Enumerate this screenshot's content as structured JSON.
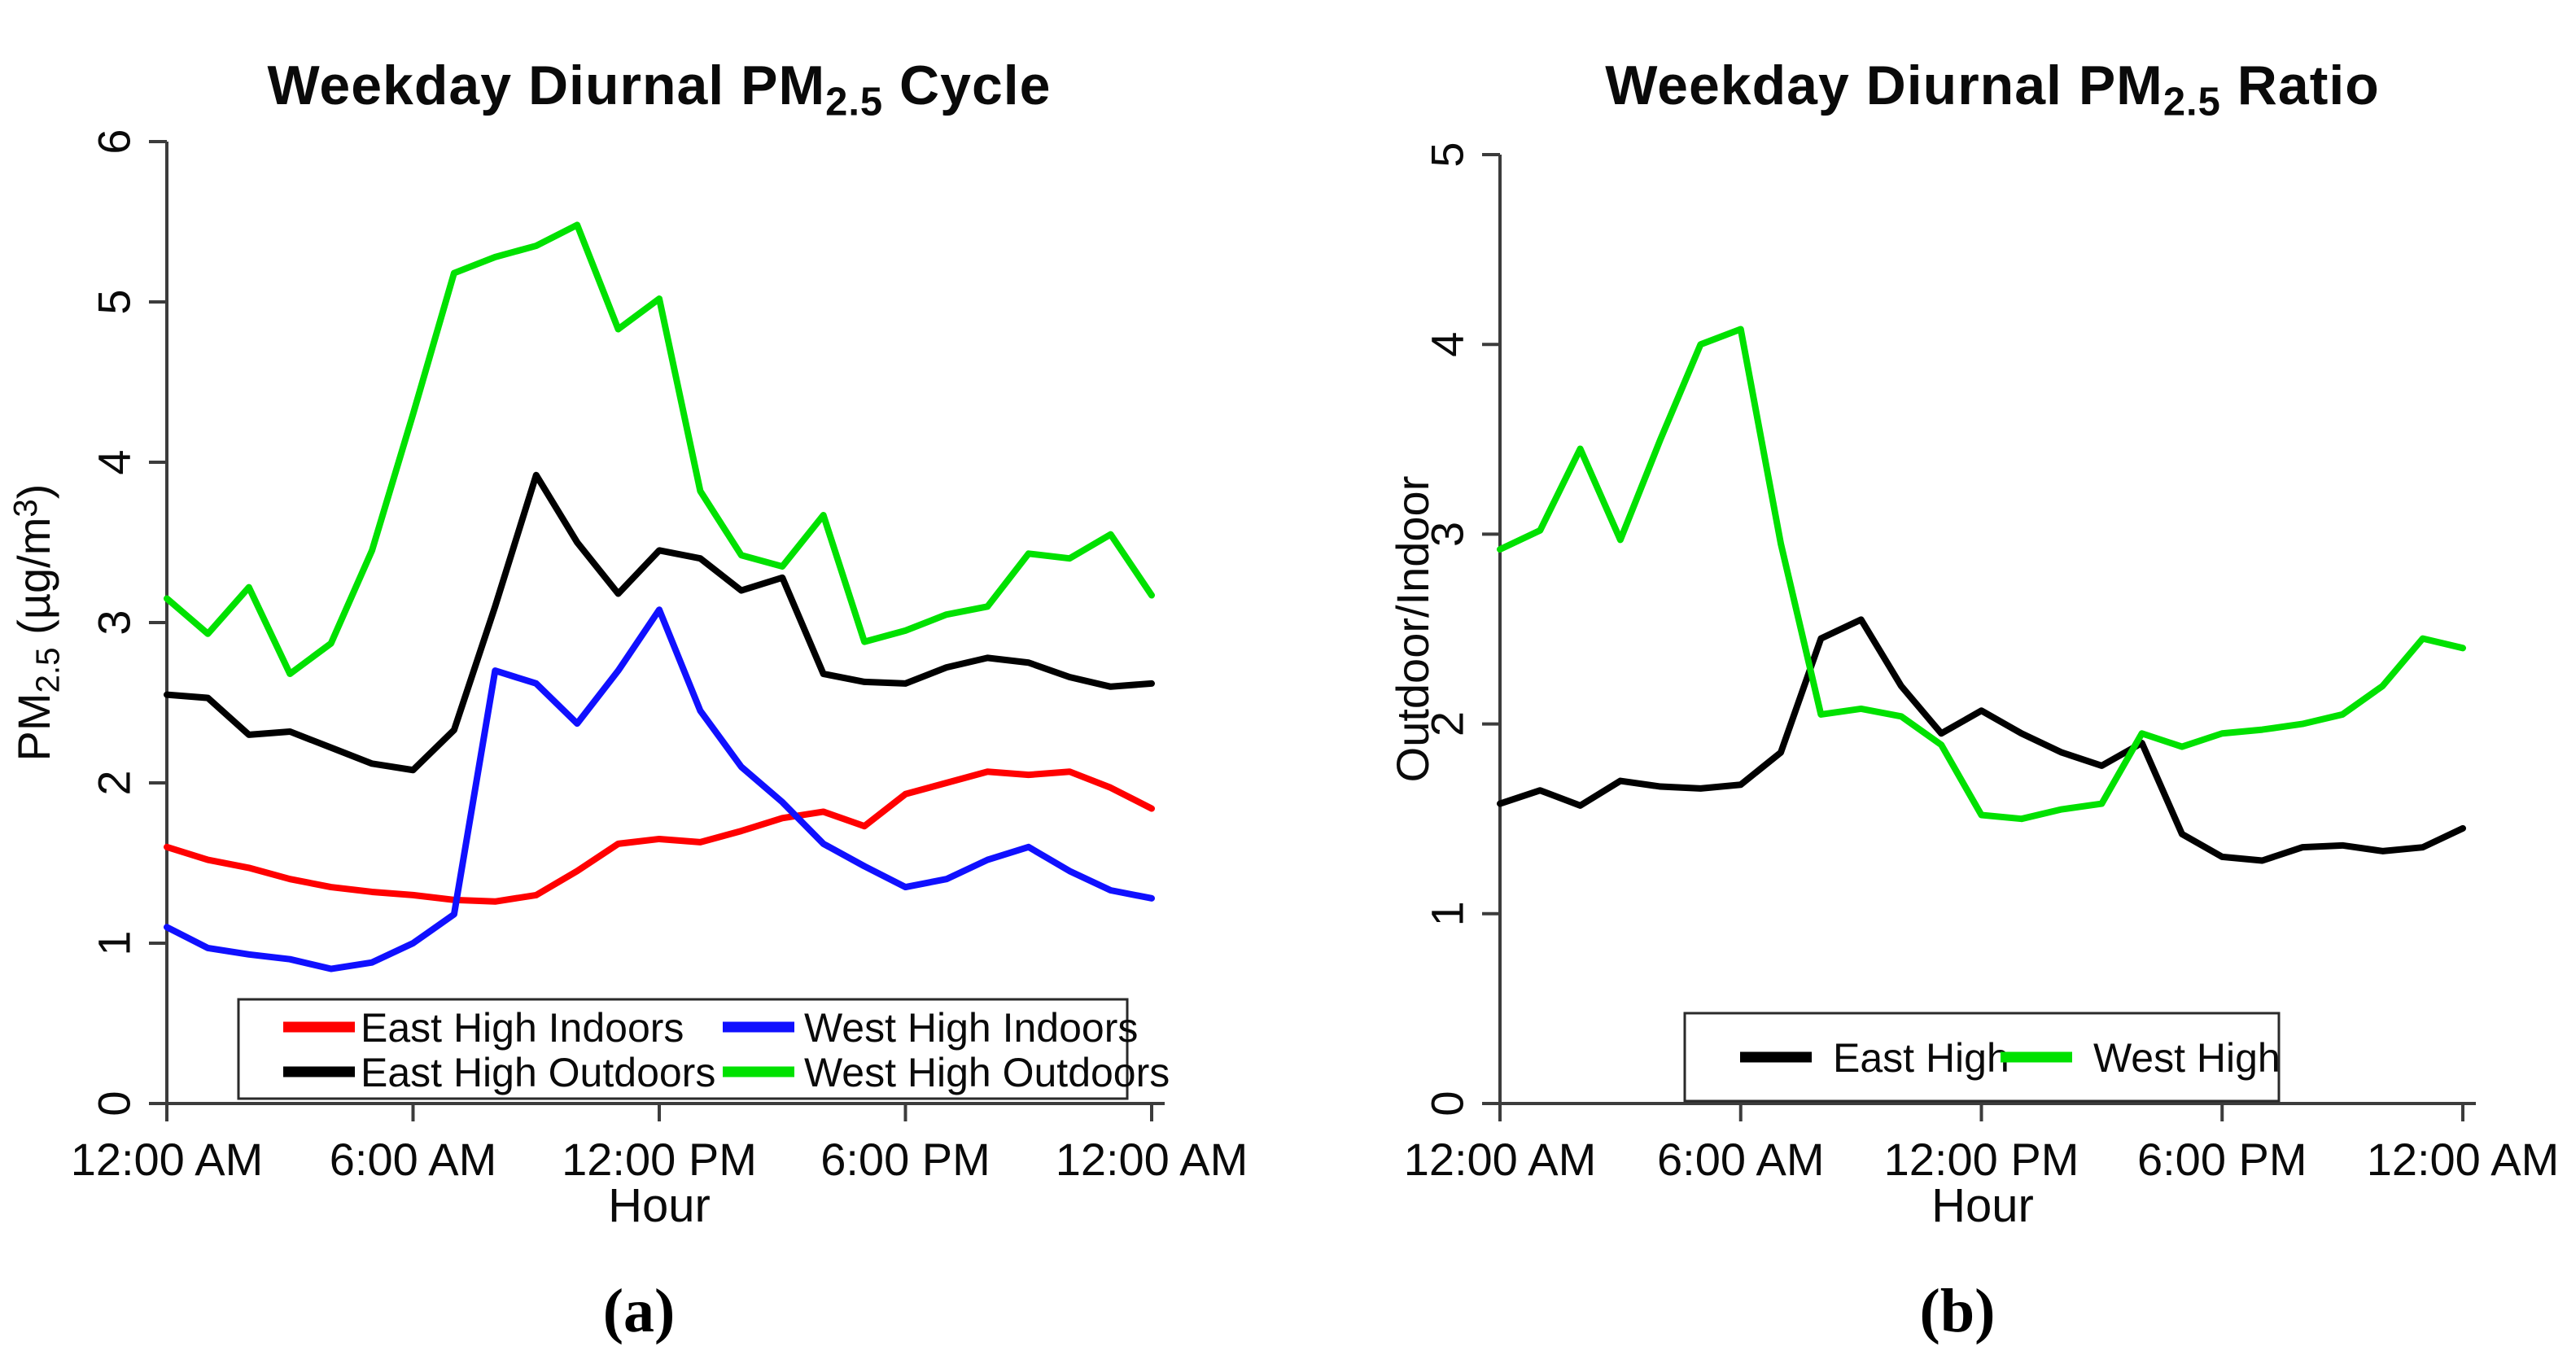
{
  "figure": {
    "background": "#FFFFFF",
    "captions": {
      "a": "(a)",
      "b": "(b)"
    }
  },
  "chart_data": [
    {
      "id": "weekday-diurnal-pm25-cycle",
      "type": "line",
      "title": {
        "pre": "Weekday Diurnal PM",
        "sub": "2.5",
        "post": " Cycle"
      },
      "ylabel": {
        "pre": "PM",
        "sub": "2.5",
        "mid": " (µg/m",
        "sup": "3",
        "post": ")"
      },
      "xlabel": "Hour",
      "caption": "(a)",
      "ylim": [
        0,
        6
      ],
      "y_ticks": [
        0,
        1,
        2,
        3,
        4,
        5,
        6
      ],
      "x_range_hours": [
        0,
        24
      ],
      "x_tick_hours": [
        0,
        6,
        12,
        18,
        24
      ],
      "x_tick_labels": [
        "12:00 AM",
        "6:00 AM",
        "12:00 PM",
        "6:00 PM",
        "12:00 AM"
      ],
      "x_hours": [
        0,
        1,
        2,
        3,
        4,
        5,
        6,
        7,
        8,
        9,
        10,
        11,
        12,
        13,
        14,
        15,
        16,
        17,
        18,
        19,
        20,
        21,
        22,
        23,
        24
      ],
      "grid": false,
      "legend_position": "bottom-inside",
      "legend_columns": 2,
      "series": [
        {
          "name": "East High Indoors",
          "color": "#FF0000",
          "values": [
            1.6,
            1.52,
            1.47,
            1.4,
            1.35,
            1.32,
            1.3,
            1.27,
            1.26,
            1.3,
            1.45,
            1.62,
            1.65,
            1.63,
            1.7,
            1.78,
            1.82,
            1.73,
            1.93,
            2.0,
            2.07,
            2.05,
            2.07,
            1.97,
            1.84
          ]
        },
        {
          "name": "East High Outdoors",
          "color": "#000000",
          "values": [
            2.55,
            2.53,
            2.3,
            2.32,
            2.22,
            2.12,
            2.08,
            2.33,
            3.1,
            3.92,
            3.5,
            3.18,
            3.45,
            3.4,
            3.2,
            3.28,
            2.68,
            2.63,
            2.62,
            2.72,
            2.78,
            2.75,
            2.66,
            2.6,
            2.62
          ]
        },
        {
          "name": "West High Indoors",
          "color": "#1010FF",
          "values": [
            1.1,
            0.97,
            0.93,
            0.9,
            0.84,
            0.88,
            1.0,
            1.18,
            2.7,
            2.62,
            2.37,
            2.7,
            3.08,
            2.45,
            2.1,
            1.88,
            1.62,
            1.48,
            1.35,
            1.4,
            1.52,
            1.6,
            1.45,
            1.33,
            1.28
          ]
        },
        {
          "name": "West High Outdoors",
          "color": "#00E100",
          "values": [
            3.15,
            2.93,
            3.22,
            2.68,
            2.87,
            3.45,
            4.3,
            5.18,
            5.28,
            5.35,
            5.48,
            4.83,
            5.02,
            3.82,
            3.42,
            3.35,
            3.67,
            2.88,
            2.95,
            3.05,
            3.1,
            3.43,
            3.4,
            3.55,
            3.17
          ]
        }
      ]
    },
    {
      "id": "weekday-diurnal-pm25-ratio",
      "type": "line",
      "title": {
        "pre": "Weekday Diurnal PM",
        "sub": "2.5",
        "post": " Ratio"
      },
      "ylabel": {
        "pre": "Outdoor/Indoor",
        "sub": "",
        "mid": "",
        "sup": "",
        "post": ""
      },
      "xlabel": "Hour",
      "caption": "(b)",
      "ylim": [
        0,
        5
      ],
      "y_ticks": [
        0,
        1,
        2,
        3,
        4,
        5
      ],
      "x_range_hours": [
        0,
        24
      ],
      "x_tick_hours": [
        0,
        6,
        12,
        18,
        24
      ],
      "x_tick_labels": [
        "12:00 AM",
        "6:00 AM",
        "12:00 PM",
        "6:00 PM",
        "12:00 AM"
      ],
      "x_hours": [
        0,
        1,
        2,
        3,
        4,
        5,
        6,
        7,
        8,
        9,
        10,
        11,
        12,
        13,
        14,
        15,
        16,
        17,
        18,
        19,
        20,
        21,
        22,
        23,
        24
      ],
      "grid": false,
      "legend_position": "bottom-inside",
      "legend_columns": 2,
      "series": [
        {
          "name": "East High",
          "color": "#000000",
          "values": [
            1.58,
            1.65,
            1.57,
            1.7,
            1.67,
            1.66,
            1.68,
            1.85,
            2.45,
            2.55,
            2.2,
            1.95,
            2.07,
            1.95,
            1.85,
            1.78,
            1.9,
            1.42,
            1.3,
            1.28,
            1.35,
            1.36,
            1.33,
            1.35,
            1.45
          ]
        },
        {
          "name": "West High",
          "color": "#00E100",
          "values": [
            2.92,
            3.02,
            3.45,
            2.97,
            3.5,
            4.0,
            4.08,
            2.95,
            2.05,
            2.08,
            2.04,
            1.89,
            1.52,
            1.5,
            1.55,
            1.58,
            1.95,
            1.88,
            1.95,
            1.97,
            2.0,
            2.05,
            2.2,
            2.45,
            2.4
          ]
        }
      ]
    }
  ]
}
